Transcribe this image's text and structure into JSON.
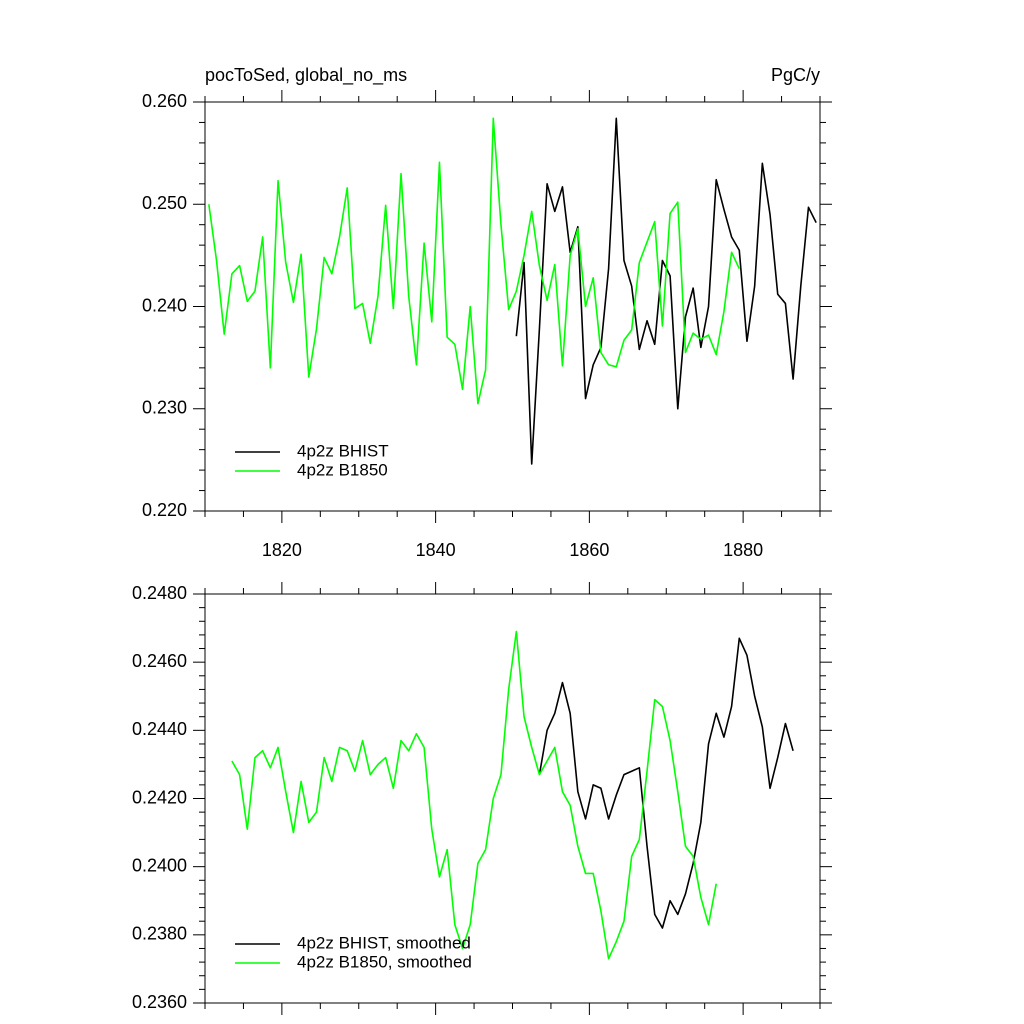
{
  "chart_data": [
    {
      "type": "line",
      "title": "pocToSed, global_no_ms",
      "units": "PgC/y",
      "xlim": [
        1810,
        1890
      ],
      "xticks": [
        1820,
        1840,
        1860,
        1880
      ],
      "xtick_labels": true,
      "ylim": [
        0.22,
        0.26
      ],
      "yticks": [
        {
          "value": 0.22,
          "label": "0.220"
        },
        {
          "value": 0.23,
          "label": "0.230"
        },
        {
          "value": 0.24,
          "label": "0.240"
        },
        {
          "value": 0.25,
          "label": "0.250"
        },
        {
          "value": 0.26,
          "label": "0.260"
        }
      ],
      "legend": "lower left",
      "series": [
        {
          "name": "4p2z BHIST",
          "color": "#000000",
          "x": [
            1850.5,
            1851.5,
            1852.5,
            1853.5,
            1854.5,
            1855.5,
            1856.5,
            1857.5,
            1858.5,
            1859.5,
            1860.5,
            1861.5,
            1862.5,
            1863.5,
            1864.5,
            1865.5,
            1866.5,
            1867.5,
            1868.5,
            1869.5,
            1870.5,
            1871.5,
            1872.5,
            1873.5,
            1874.5,
            1875.5,
            1876.5,
            1877.5,
            1878.5,
            1879.5,
            1880.5,
            1881.5,
            1882.5,
            1883.5,
            1884.5,
            1885.5,
            1886.5,
            1887.5,
            1888.5,
            1889.5
          ],
          "values": [
            0.2371,
            0.2443,
            0.2246,
            0.2378,
            0.252,
            0.2493,
            0.2517,
            0.2453,
            0.2478,
            0.231,
            0.2343,
            0.236,
            0.2437,
            0.2584,
            0.2445,
            0.242,
            0.2358,
            0.2386,
            0.2363,
            0.2445,
            0.243,
            0.23,
            0.239,
            0.2418,
            0.236,
            0.24,
            0.2524,
            0.2495,
            0.2468,
            0.2455,
            0.2366,
            0.242,
            0.254,
            0.249,
            0.2412,
            0.2403,
            0.2329,
            0.242,
            0.2497,
            0.2482
          ]
        },
        {
          "name": "4p2z B1850",
          "color": "#00ff00",
          "x": [
            1810.5,
            1811.5,
            1812.5,
            1813.5,
            1814.5,
            1815.5,
            1816.5,
            1817.5,
            1818.5,
            1819.5,
            1820.5,
            1821.5,
            1822.5,
            1823.5,
            1824.5,
            1825.5,
            1826.5,
            1827.5,
            1828.5,
            1829.5,
            1830.5,
            1831.5,
            1832.5,
            1833.5,
            1834.5,
            1835.5,
            1836.5,
            1837.5,
            1838.5,
            1839.5,
            1840.5,
            1841.5,
            1842.5,
            1843.5,
            1844.5,
            1845.5,
            1846.5,
            1847.5,
            1848.5,
            1849.5,
            1850.5,
            1851.5,
            1852.5,
            1853.5,
            1854.5,
            1855.5,
            1856.5,
            1857.5,
            1858.5,
            1859.5,
            1860.5,
            1861.5,
            1862.5,
            1863.5,
            1864.5,
            1865.5,
            1866.5,
            1867.5,
            1868.5,
            1869.5,
            1870.5,
            1871.5,
            1872.5,
            1873.5,
            1874.5,
            1875.5,
            1876.5,
            1877.5,
            1878.5,
            1879.5
          ],
          "values": [
            0.25,
            0.2445,
            0.2373,
            0.2432,
            0.244,
            0.2405,
            0.2415,
            0.2468,
            0.234,
            0.2523,
            0.2443,
            0.2404,
            0.2451,
            0.2331,
            0.2378,
            0.2448,
            0.2432,
            0.2468,
            0.2516,
            0.2398,
            0.2403,
            0.2364,
            0.241,
            0.2499,
            0.2398,
            0.253,
            0.241,
            0.2343,
            0.2462,
            0.2385,
            0.2541,
            0.237,
            0.2363,
            0.2319,
            0.24,
            0.2305,
            0.2338,
            0.2584,
            0.248,
            0.2397,
            0.2415,
            0.245,
            0.2493,
            0.244,
            0.2406,
            0.2441,
            0.2342,
            0.245,
            0.2476,
            0.24,
            0.2428,
            0.2355,
            0.2343,
            0.2341,
            0.2367,
            0.2377,
            0.2443,
            0.2463,
            0.2483,
            0.2381,
            0.2491,
            0.2502,
            0.2355,
            0.2374,
            0.2368,
            0.2372,
            0.2353,
            0.2395,
            0.2453,
            0.2437
          ]
        }
      ]
    },
    {
      "type": "line",
      "xlim": [
        1810,
        1890
      ],
      "xticks": [
        1820,
        1840,
        1860,
        1880
      ],
      "xtick_labels": false,
      "ylim": [
        0.236,
        0.248
      ],
      "yticks": [
        {
          "value": 0.236,
          "label": "0.2360"
        },
        {
          "value": 0.238,
          "label": "0.2380"
        },
        {
          "value": 0.24,
          "label": "0.2400"
        },
        {
          "value": 0.242,
          "label": "0.2420"
        },
        {
          "value": 0.244,
          "label": "0.2440"
        },
        {
          "value": 0.246,
          "label": "0.2460"
        },
        {
          "value": 0.248,
          "label": "0.2480"
        }
      ],
      "legend": "lower left",
      "series": [
        {
          "name": "4p2z BHIST, smoothed",
          "color": "#000000",
          "x": [
            1853.5,
            1854.5,
            1855.5,
            1856.5,
            1857.5,
            1858.5,
            1859.5,
            1860.5,
            1861.5,
            1862.5,
            1863.5,
            1864.5,
            1865.5,
            1866.5,
            1867.5,
            1868.5,
            1869.5,
            1870.5,
            1871.5,
            1872.5,
            1873.5,
            1874.5,
            1875.5,
            1876.5,
            1877.5,
            1878.5,
            1879.5,
            1880.5,
            1881.5,
            1882.5,
            1883.5,
            1884.5,
            1885.5,
            1886.5
          ],
          "values": [
            0.2427,
            0.244,
            0.2445,
            0.2454,
            0.2445,
            0.2422,
            0.2414,
            0.2424,
            0.2423,
            0.2414,
            0.2421,
            0.2427,
            0.2428,
            0.2429,
            0.2406,
            0.2386,
            0.2382,
            0.239,
            0.2386,
            0.2392,
            0.2401,
            0.2413,
            0.2436,
            0.2445,
            0.2438,
            0.2447,
            0.2467,
            0.2462,
            0.245,
            0.2441,
            0.2423,
            0.2432,
            0.2442,
            0.2434
          ]
        },
        {
          "name": "4p2z B1850, smoothed",
          "color": "#00ff00",
          "x": [
            1813.5,
            1814.5,
            1815.5,
            1816.5,
            1817.5,
            1818.5,
            1819.5,
            1820.5,
            1821.5,
            1822.5,
            1823.5,
            1824.5,
            1825.5,
            1826.5,
            1827.5,
            1828.5,
            1829.5,
            1830.5,
            1831.5,
            1832.5,
            1833.5,
            1834.5,
            1835.5,
            1836.5,
            1837.5,
            1838.5,
            1839.5,
            1840.5,
            1841.5,
            1842.5,
            1843.5,
            1844.5,
            1845.5,
            1846.5,
            1847.5,
            1848.5,
            1849.5,
            1850.5,
            1851.5,
            1852.5,
            1853.5,
            1854.5,
            1855.5,
            1856.5,
            1857.5,
            1858.5,
            1859.5,
            1860.5,
            1861.5,
            1862.5,
            1863.5,
            1864.5,
            1865.5,
            1866.5,
            1867.5,
            1868.5,
            1869.5,
            1870.5,
            1871.5,
            1872.5,
            1873.5,
            1874.5,
            1875.5,
            1876.5
          ],
          "values": [
            0.2431,
            0.2427,
            0.2411,
            0.2432,
            0.2434,
            0.2429,
            0.2435,
            0.2422,
            0.241,
            0.2425,
            0.2413,
            0.2416,
            0.2432,
            0.2425,
            0.2435,
            0.2434,
            0.2428,
            0.2437,
            0.2427,
            0.243,
            0.2432,
            0.2423,
            0.2437,
            0.2434,
            0.2439,
            0.2435,
            0.2411,
            0.2397,
            0.2405,
            0.2383,
            0.2376,
            0.2383,
            0.2401,
            0.2405,
            0.242,
            0.2427,
            0.2452,
            0.2469,
            0.2444,
            0.2435,
            0.2427,
            0.2431,
            0.2435,
            0.2422,
            0.2418,
            0.2406,
            0.2398,
            0.2398,
            0.2387,
            0.2373,
            0.2378,
            0.2384,
            0.2403,
            0.2408,
            0.2428,
            0.2449,
            0.2447,
            0.2437,
            0.2422,
            0.2406,
            0.2403,
            0.2391,
            0.2383,
            0.2395
          ]
        }
      ]
    }
  ]
}
